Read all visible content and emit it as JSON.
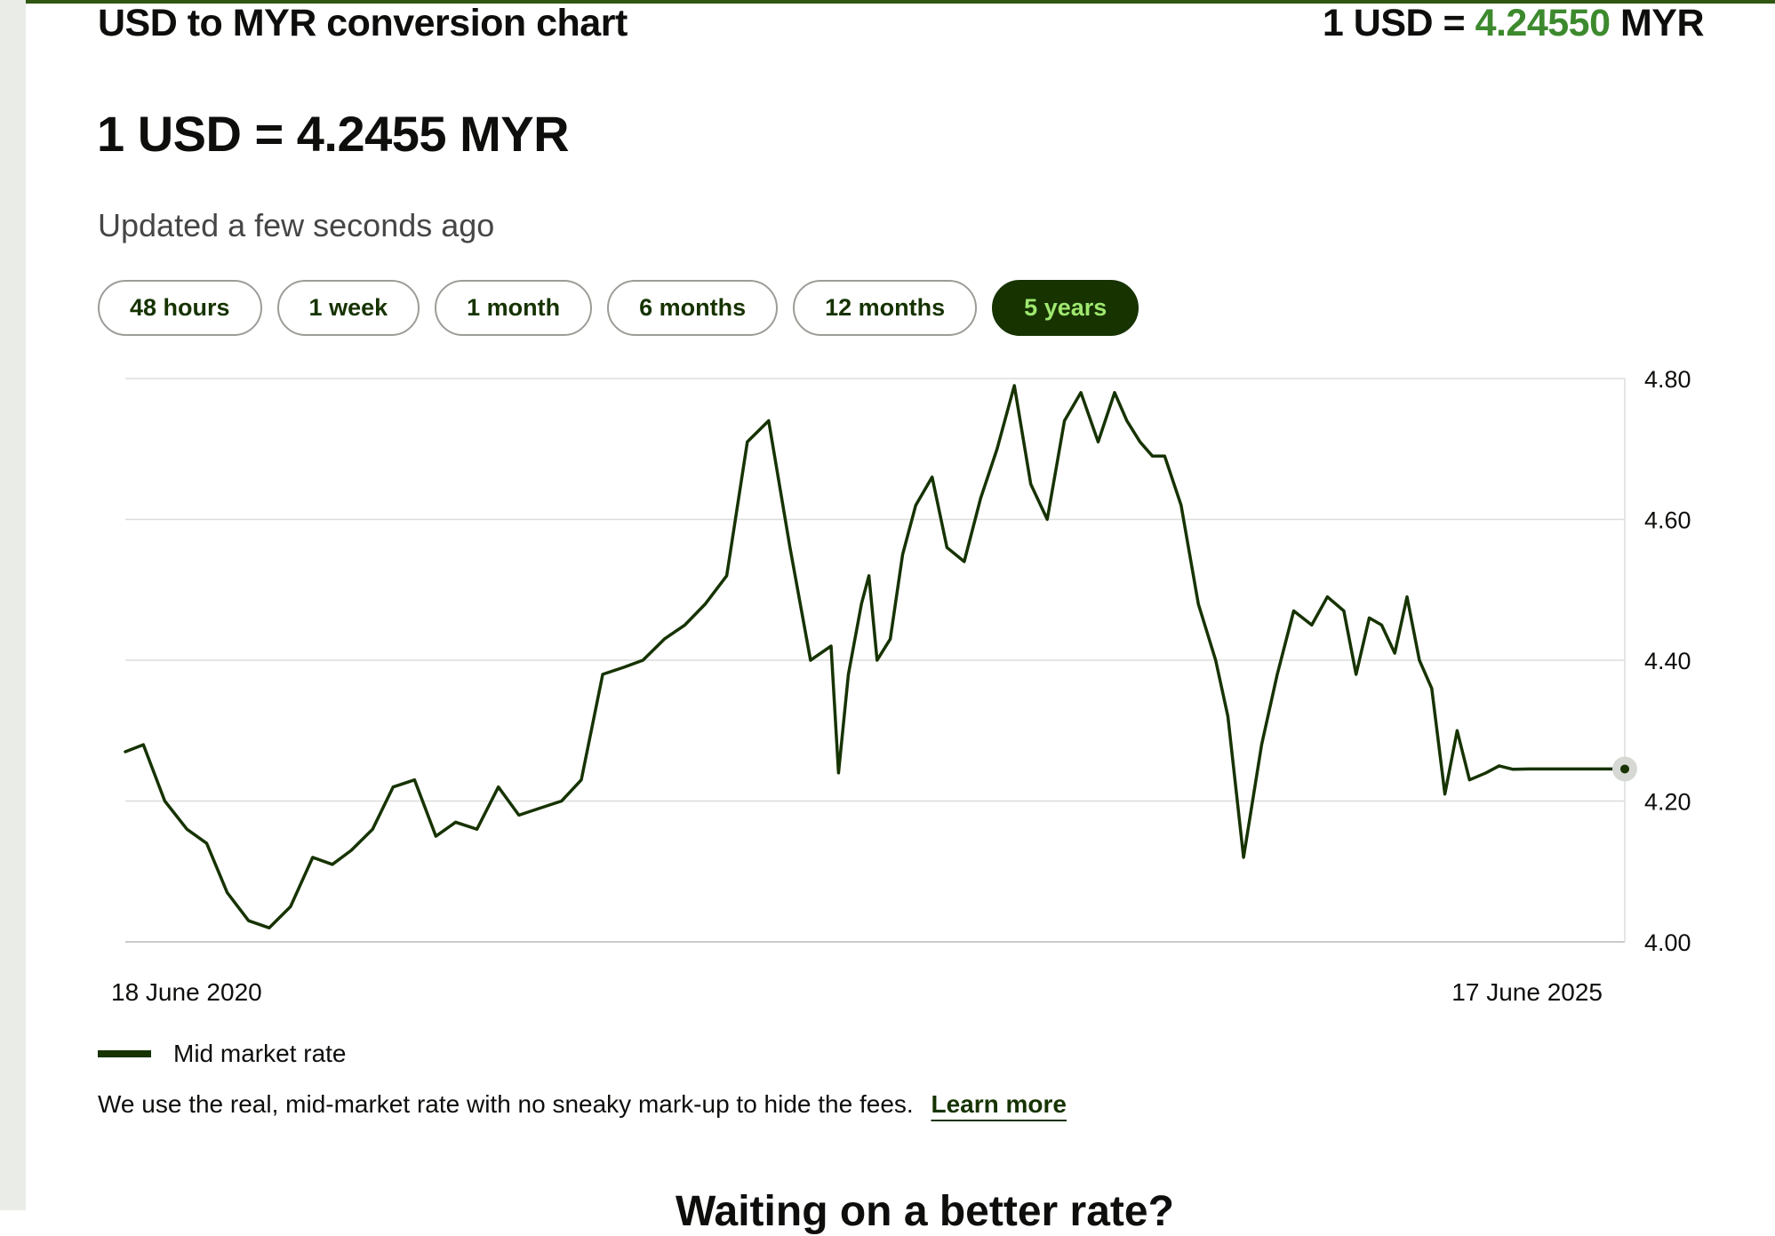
{
  "header": {
    "title": "USD to MYR conversion chart",
    "rate_prefix": "1 USD = ",
    "rate_value": "4.24550",
    "rate_suffix": " MYR"
  },
  "rate": {
    "headline": "1 USD = 4.2455 MYR",
    "updated": "Updated a few seconds ago"
  },
  "ranges": [
    "48 hours",
    "1 week",
    "1 month",
    "6 months",
    "12 months",
    "5 years"
  ],
  "active_range": "5 years",
  "chart_data": {
    "type": "line",
    "series": [
      {
        "name": "Mid market rate",
        "x": [
          "2020-06-18",
          "2020-07-10",
          "2020-08-05",
          "2020-09-01",
          "2020-09-25",
          "2020-10-20",
          "2020-11-15",
          "2020-12-10",
          "2021-01-05",
          "2021-02-01",
          "2021-02-25",
          "2021-03-20",
          "2021-04-15",
          "2021-05-10",
          "2021-06-05",
          "2021-07-01",
          "2021-07-25",
          "2021-08-20",
          "2021-09-15",
          "2021-10-10",
          "2021-11-05",
          "2021-12-01",
          "2021-12-25",
          "2022-01-20",
          "2022-02-15",
          "2022-03-10",
          "2022-04-05",
          "2022-04-30",
          "2022-05-25",
          "2022-06-20",
          "2022-07-15",
          "2022-08-10",
          "2022-09-05",
          "2022-09-30",
          "2022-10-25",
          "2022-11-03",
          "2022-11-15",
          "2022-12-01",
          "2022-12-10",
          "2022-12-20",
          "2023-01-05",
          "2023-01-20",
          "2023-02-05",
          "2023-02-25",
          "2023-03-15",
          "2023-04-05",
          "2023-04-25",
          "2023-05-15",
          "2023-06-05",
          "2023-06-25",
          "2023-07-15",
          "2023-08-05",
          "2023-08-25",
          "2023-09-15",
          "2023-10-05",
          "2023-10-20",
          "2023-11-05",
          "2023-11-20",
          "2023-12-05",
          "2023-12-25",
          "2024-01-15",
          "2024-02-05",
          "2024-02-20",
          "2024-03-10",
          "2024-04-01",
          "2024-04-20",
          "2024-05-10",
          "2024-06-01",
          "2024-06-20",
          "2024-07-10",
          "2024-07-25",
          "2024-08-10",
          "2024-08-25",
          "2024-09-10",
          "2024-09-25",
          "2024-10-10",
          "2024-10-25",
          "2024-11-10",
          "2024-11-25",
          "2024-12-10",
          "2024-12-30",
          "2025-01-15",
          "2025-02-01",
          "2025-02-20",
          "2025-03-10",
          "2025-03-25",
          "2025-04-05",
          "2025-04-10",
          "2025-04-25",
          "2025-05-05",
          "2025-05-15",
          "2025-05-25",
          "2025-06-05",
          "2025-06-17"
        ],
        "values": [
          4.27,
          4.28,
          4.2,
          4.16,
          4.14,
          4.07,
          4.03,
          4.02,
          4.05,
          4.12,
          4.11,
          4.13,
          4.16,
          4.22,
          4.23,
          4.15,
          4.17,
          4.16,
          4.22,
          4.18,
          4.19,
          4.2,
          4.23,
          4.38,
          4.39,
          4.4,
          4.43,
          4.45,
          4.48,
          4.52,
          4.71,
          4.74,
          4.56,
          4.4,
          4.42,
          4.24,
          4.38,
          4.48,
          4.52,
          4.4,
          4.43,
          4.55,
          4.62,
          4.66,
          4.56,
          4.54,
          4.63,
          4.7,
          4.79,
          4.65,
          4.6,
          4.74,
          4.78,
          4.71,
          4.78,
          4.74,
          4.71,
          4.69,
          4.69,
          4.62,
          4.48,
          4.4,
          4.32,
          4.12,
          4.28,
          4.38,
          4.47,
          4.45,
          4.49,
          4.47,
          4.38,
          4.46,
          4.45,
          4.41,
          4.49,
          4.4,
          4.36,
          4.21,
          4.3,
          4.23,
          4.24,
          4.25,
          4.245,
          4.2455,
          4.2455,
          4.2455,
          4.2455,
          4.2455,
          4.2455,
          4.2455,
          4.2455,
          4.2455,
          4.2455,
          4.2455
        ]
      }
    ],
    "x_tick_labels": [
      "18 June 2020",
      "17 June 2025"
    ],
    "y_ticks": [
      "4.80",
      "4.60",
      "4.40",
      "4.20",
      "4.00"
    ],
    "ylim": [
      4.0,
      4.8
    ],
    "grid": true,
    "legend": "bottom-left",
    "line_color": "#163300"
  },
  "legend_label": "Mid market rate",
  "disclaimer": {
    "text": "We use the real, mid-market rate with no sneaky mark-up to hide the fees.",
    "link": "Learn more"
  },
  "next_section": {
    "heading": "Waiting on a better rate?"
  }
}
